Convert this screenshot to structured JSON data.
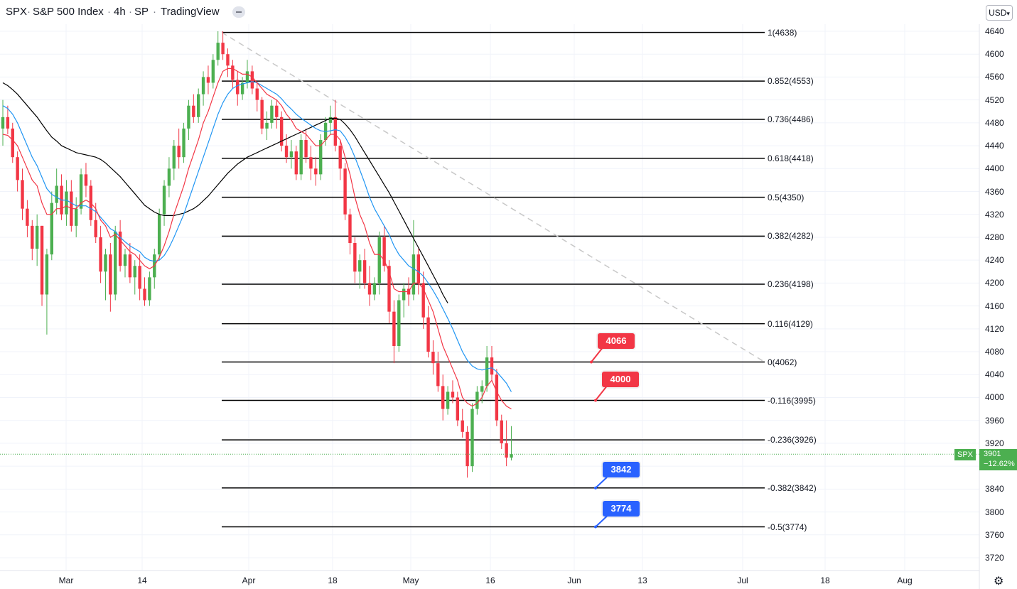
{
  "header": {
    "symbol": "SPX",
    "name": "S&P 500 Index",
    "interval": "4h",
    "exchange": "SP",
    "source": "TradingView",
    "currency": "USD"
  },
  "last": {
    "symbol_tag": "SPX",
    "price": "3901",
    "change": "−12.62%"
  },
  "colors": {
    "up": "#4caf50",
    "down": "#f23645",
    "ema_fast": "#f23645",
    "ema_mid": "#2196f3",
    "sma_slow": "#000000",
    "fib": "#000000",
    "trend": "#c8c8c8",
    "callout_red": "#f23645",
    "callout_blue": "#2962ff"
  },
  "icons": {
    "gear": "gear-icon",
    "currency_chevron": "chevron-down-icon"
  },
  "chart_data": {
    "type": "candlestick",
    "title": "SPX · S&P 500 Index · 4h · SP",
    "y_axis": {
      "ticks": [
        4640,
        4600,
        4560,
        4520,
        4480,
        4440,
        4400,
        4360,
        4320,
        4280,
        4240,
        4200,
        4160,
        4120,
        4080,
        4040,
        4000,
        3960,
        3920,
        3880,
        3840,
        3800,
        3760,
        3720
      ],
      "labeled_ticks": [
        4640,
        4600,
        4560,
        4520,
        4480,
        4440,
        4400,
        4360,
        4320,
        4280,
        4240,
        4200,
        4160,
        4120,
        4080,
        4040,
        4000,
        3960,
        3920,
        3840,
        3800,
        3760,
        3720
      ],
      "range": [
        3700,
        4660
      ]
    },
    "x_axis": {
      "labels": [
        "Mar",
        "14",
        "Apr",
        "18",
        "May",
        "16",
        "Jun",
        "13",
        "Jul",
        "18",
        "Aug"
      ]
    },
    "fib_levels": [
      {
        "label": "1(4638)",
        "price": 4638
      },
      {
        "label": "0.852(4553)",
        "price": 4553
      },
      {
        "label": "0.736(4486)",
        "price": 4486
      },
      {
        "label": "0.618(4418)",
        "price": 4418
      },
      {
        "label": "0.5(4350)",
        "price": 4350
      },
      {
        "label": "0.382(4282)",
        "price": 4282
      },
      {
        "label": "0.236(4198)",
        "price": 4198
      },
      {
        "label": "0.116(4129)",
        "price": 4129
      },
      {
        "label": "0(4062)",
        "price": 4062
      },
      {
        "label": "-0.116(3995)",
        "price": 3995
      },
      {
        "label": "-0.236(3926)",
        "price": 3926
      },
      {
        "label": "-0.382(3842)",
        "price": 3842
      },
      {
        "label": "-0.5(3774)",
        "price": 3774
      }
    ],
    "callouts": [
      {
        "text": "4066",
        "price": 4062,
        "color": "red"
      },
      {
        "text": "4000",
        "price": 3995,
        "color": "red"
      },
      {
        "text": "3842",
        "price": 3842,
        "color": "blue"
      },
      {
        "text": "3774",
        "price": 3774,
        "color": "blue"
      }
    ],
    "trendline": {
      "from_price": 4638,
      "to_price": 4062
    },
    "candles": [
      [
        4470,
        4520,
        4440,
        4490
      ],
      [
        4490,
        4510,
        4460,
        4470
      ],
      [
        4470,
        4480,
        4410,
        4420
      ],
      [
        4420,
        4430,
        4360,
        4380
      ],
      [
        4380,
        4400,
        4310,
        4330
      ],
      [
        4330,
        4345,
        4280,
        4300
      ],
      [
        4300,
        4310,
        4240,
        4260
      ],
      [
        4260,
        4320,
        4230,
        4300
      ],
      [
        4300,
        4300,
        4160,
        4180
      ],
      [
        4180,
        4260,
        4110,
        4250
      ],
      [
        4250,
        4360,
        4240,
        4340
      ],
      [
        4340,
        4400,
        4320,
        4370
      ],
      [
        4370,
        4390,
        4310,
        4320
      ],
      [
        4320,
        4380,
        4300,
        4360
      ],
      [
        4360,
        4380,
        4290,
        4300
      ],
      [
        4300,
        4350,
        4280,
        4330
      ],
      [
        4330,
        4400,
        4320,
        4390
      ],
      [
        4390,
        4410,
        4350,
        4370
      ],
      [
        4370,
        4380,
        4300,
        4310
      ],
      [
        4310,
        4340,
        4270,
        4280
      ],
      [
        4280,
        4300,
        4200,
        4220
      ],
      [
        4220,
        4260,
        4170,
        4250
      ],
      [
        4250,
        4270,
        4150,
        4180
      ],
      [
        4180,
        4300,
        4170,
        4290
      ],
      [
        4290,
        4310,
        4220,
        4230
      ],
      [
        4230,
        4260,
        4210,
        4250
      ],
      [
        4250,
        4270,
        4200,
        4210
      ],
      [
        4210,
        4240,
        4180,
        4230
      ],
      [
        4230,
        4250,
        4170,
        4190
      ],
      [
        4190,
        4210,
        4160,
        4170
      ],
      [
        4170,
        4220,
        4160,
        4210
      ],
      [
        4210,
        4260,
        4190,
        4250
      ],
      [
        4250,
        4330,
        4240,
        4320
      ],
      [
        4320,
        4380,
        4300,
        4370
      ],
      [
        4370,
        4420,
        4350,
        4400
      ],
      [
        4400,
        4450,
        4380,
        4440
      ],
      [
        4440,
        4470,
        4400,
        4420
      ],
      [
        4420,
        4480,
        4410,
        4470
      ],
      [
        4470,
        4520,
        4450,
        4510
      ],
      [
        4510,
        4530,
        4480,
        4490
      ],
      [
        4490,
        4540,
        4480,
        4530
      ],
      [
        4530,
        4570,
        4510,
        4560
      ],
      [
        4560,
        4580,
        4530,
        4550
      ],
      [
        4550,
        4600,
        4540,
        4590
      ],
      [
        4590,
        4640,
        4580,
        4620
      ],
      [
        4620,
        4640,
        4590,
        4600
      ],
      [
        4600,
        4610,
        4560,
        4580
      ],
      [
        4580,
        4590,
        4540,
        4555
      ],
      [
        4555,
        4570,
        4510,
        4530
      ],
      [
        4530,
        4560,
        4520,
        4550
      ],
      [
        4550,
        4590,
        4540,
        4570
      ],
      [
        4570,
        4580,
        4530,
        4540
      ],
      [
        4540,
        4550,
        4500,
        4520
      ],
      [
        4520,
        4525,
        4460,
        4470
      ],
      [
        4470,
        4500,
        4450,
        4480
      ],
      [
        4480,
        4520,
        4470,
        4510
      ],
      [
        4510,
        4520,
        4470,
        4490
      ],
      [
        4490,
        4500,
        4430,
        4440
      ],
      [
        4440,
        4460,
        4410,
        4420
      ],
      [
        4420,
        4450,
        4400,
        4430
      ],
      [
        4430,
        4440,
        4380,
        4390
      ],
      [
        4390,
        4460,
        4380,
        4450
      ],
      [
        4450,
        4470,
        4410,
        4420
      ],
      [
        4420,
        4440,
        4380,
        4400
      ],
      [
        4400,
        4420,
        4370,
        4390
      ],
      [
        4390,
        4460,
        4380,
        4450
      ],
      [
        4450,
        4490,
        4440,
        4480
      ],
      [
        4480,
        4510,
        4460,
        4490
      ],
      [
        4490,
        4520,
        4430,
        4440
      ],
      [
        4440,
        4450,
        4380,
        4400
      ],
      [
        4400,
        4410,
        4310,
        4320
      ],
      [
        4320,
        4330,
        4250,
        4270
      ],
      [
        4270,
        4280,
        4200,
        4220
      ],
      [
        4220,
        4250,
        4190,
        4240
      ],
      [
        4240,
        4260,
        4190,
        4200
      ],
      [
        4200,
        4230,
        4160,
        4180
      ],
      [
        4180,
        4210,
        4170,
        4200
      ],
      [
        4200,
        4290,
        4180,
        4280
      ],
      [
        4280,
        4300,
        4220,
        4230
      ],
      [
        4230,
        4240,
        4130,
        4150
      ],
      [
        4150,
        4170,
        4060,
        4090
      ],
      [
        4090,
        4180,
        4080,
        4170
      ],
      [
        4170,
        4200,
        4140,
        4190
      ],
      [
        4190,
        4210,
        4160,
        4180
      ],
      [
        4180,
        4310,
        4170,
        4250
      ],
      [
        4250,
        4260,
        4180,
        4200
      ],
      [
        4200,
        4220,
        4120,
        4140
      ],
      [
        4140,
        4160,
        4070,
        4080
      ],
      [
        4080,
        4100,
        4040,
        4060
      ],
      [
        4060,
        4080,
        4010,
        4020
      ],
      [
        4020,
        4040,
        3960,
        3980
      ],
      [
        3980,
        4020,
        3970,
        4010
      ],
      [
        4010,
        4030,
        3990,
        4000
      ],
      [
        4000,
        4010,
        3950,
        3960
      ],
      [
        3960,
        3980,
        3930,
        3940
      ],
      [
        3940,
        3950,
        3860,
        3880
      ],
      [
        3880,
        3990,
        3870,
        3980
      ],
      [
        3980,
        4020,
        3970,
        4010
      ],
      [
        4010,
        4030,
        3990,
        4020
      ],
      [
        4020,
        4090,
        4010,
        4070
      ],
      [
        4070,
        4090,
        4030,
        4040
      ],
      [
        4040,
        4050,
        3950,
        3960
      ],
      [
        3960,
        3970,
        3910,
        3920
      ],
      [
        3920,
        3960,
        3880,
        3895
      ],
      [
        3895,
        3950,
        3890,
        3901
      ]
    ],
    "ema_fast": [
      4460,
      4458,
      4450,
      4440,
      4420,
      4400,
      4380,
      4370,
      4340,
      4320,
      4320,
      4330,
      4330,
      4335,
      4330,
      4330,
      4340,
      4345,
      4340,
      4330,
      4310,
      4300,
      4280,
      4285,
      4275,
      4265,
      4255,
      4250,
      4240,
      4230,
      4225,
      4230,
      4245,
      4265,
      4290,
      4320,
      4345,
      4370,
      4400,
      4425,
      4450,
      4480,
      4500,
      4525,
      4550,
      4570,
      4575,
      4575,
      4570,
      4565,
      4565,
      4560,
      4550,
      4540,
      4530,
      4525,
      4520,
      4510,
      4495,
      4485,
      4470,
      4465,
      4460,
      4450,
      4440,
      4440,
      4450,
      4460,
      4460,
      4450,
      4420,
      4390,
      4350,
      4320,
      4300,
      4270,
      4250,
      4250,
      4240,
      4220,
      4190,
      4185,
      4185,
      4185,
      4200,
      4200,
      4190,
      4170,
      4150,
      4120,
      4090,
      4070,
      4050,
      4030,
      4000,
      3990,
      3985,
      3990,
      4000,
      4020,
      4030,
      4010,
      3995,
      3985,
      3980
    ],
    "ema_mid": [
      4510,
      4505,
      4495,
      4480,
      4460,
      4440,
      4420,
      4405,
      4385,
      4365,
      4355,
      4350,
      4345,
      4345,
      4340,
      4335,
      4335,
      4335,
      4330,
      4325,
      4315,
      4305,
      4295,
      4290,
      4280,
      4272,
      4265,
      4260,
      4255,
      4245,
      4240,
      4238,
      4240,
      4248,
      4262,
      4280,
      4300,
      4320,
      4345,
      4370,
      4395,
      4420,
      4445,
      4470,
      4495,
      4515,
      4530,
      4540,
      4545,
      4548,
      4550,
      4552,
      4550,
      4545,
      4540,
      4535,
      4530,
      4522,
      4512,
      4504,
      4495,
      4488,
      4482,
      4476,
      4470,
      4466,
      4465,
      4466,
      4468,
      4466,
      4455,
      4440,
      4420,
      4398,
      4375,
      4350,
      4330,
      4315,
      4300,
      4285,
      4265,
      4250,
      4240,
      4230,
      4225,
      4220,
      4212,
      4200,
      4187,
      4172,
      4155,
      4138,
      4120,
      4100,
      4080,
      4065,
      4055,
      4050,
      4048,
      4050,
      4052,
      4045,
      4035,
      4025,
      4010
    ],
    "sma_slow": [
      4550,
      4545,
      4538,
      4530,
      4520,
      4510,
      4500,
      4490,
      4478,
      4466,
      4455,
      4448,
      4440,
      4436,
      4432,
      4428,
      4426,
      4424,
      4422,
      4420,
      4416,
      4410,
      4402,
      4394,
      4386,
      4376,
      4366,
      4356,
      4346,
      4336,
      4330,
      4324,
      4320,
      4318,
      4318,
      4318,
      4320,
      4322,
      4326,
      4330,
      4336,
      4344,
      4352,
      4362,
      4372,
      4382,
      4392,
      4400,
      4408,
      4414,
      4420,
      4424,
      4428,
      4432,
      4436,
      4440,
      4444,
      4448,
      4452,
      4456,
      4460,
      4464,
      4468,
      4472,
      4476,
      4480,
      4484,
      4488,
      4488,
      4486,
      4478,
      4468,
      4456,
      4442,
      4428,
      4414,
      4400,
      4386,
      4372,
      4358,
      4342,
      4326,
      4310,
      4294,
      4278,
      4262,
      4246,
      4230,
      4214,
      4198,
      4180,
      4165
    ]
  }
}
